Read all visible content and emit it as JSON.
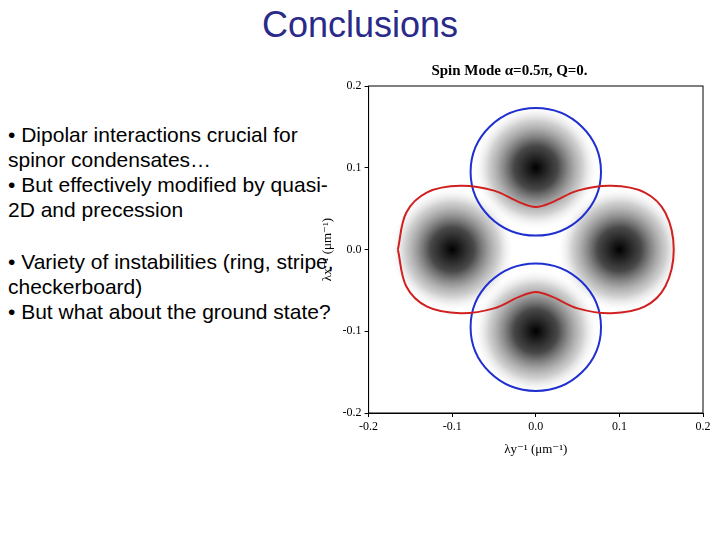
{
  "slide": {
    "title": "Conclusions",
    "bullet_groups": [
      [
        "• Dipolar interactions crucial for spinor condensates…",
        "• But effectively modified by quasi-2D and precession"
      ],
      [
        "• Variety of instabilities (ring, stripe, checkerboard)",
        "• But what about the ground state?"
      ]
    ]
  },
  "chart_data": {
    "type": "scatter",
    "title": "Spin Mode α=0.5π, Q=0.",
    "x_label": "λy⁻¹ (μm⁻¹)",
    "y_label": "λx⁻¹ (μm⁻¹)",
    "xlim": [
      -0.2,
      0.2
    ],
    "ylim": [
      -0.2,
      0.2
    ],
    "xticks": [
      -0.2,
      -0.1,
      {
        "value": 0,
        "label": "0.0"
      },
      0.1,
      0.2
    ],
    "yticks": [
      -0.2,
      -0.1,
      {
        "value": 0,
        "label": "0.0"
      },
      0.1,
      0.2
    ],
    "grid": false,
    "blobs": {
      "x": [
        0,
        0,
        -0.1,
        0.1
      ],
      "y": [
        0.1,
        -0.1,
        0,
        0
      ],
      "r": 0.075
    },
    "circles": [
      {
        "color": "#1f2fd0",
        "x": 0,
        "y": 0.095,
        "r": 0.078
      },
      {
        "color": "#1f2fd0",
        "x": 0,
        "y": -0.095,
        "r": 0.078
      }
    ],
    "curves": [
      {
        "color": "#d02020",
        "x": [
          -0.165,
          -0.155,
          -0.13,
          -0.09,
          -0.05,
          -0.02,
          0,
          0.02,
          0.05,
          0.09,
          0.13,
          0.155,
          0.165,
          0.155,
          0.13,
          0.09,
          0.05,
          0.02,
          0,
          -0.02,
          -0.05,
          -0.09,
          -0.13,
          -0.155,
          -0.165
        ],
        "y": [
          0,
          0.045,
          0.07,
          0.078,
          0.072,
          0.058,
          0.052,
          0.058,
          0.072,
          0.078,
          0.07,
          0.045,
          0,
          -0.045,
          -0.07,
          -0.078,
          -0.072,
          -0.058,
          -0.052,
          -0.058,
          -0.072,
          -0.078,
          -0.07,
          -0.045,
          0
        ]
      }
    ]
  }
}
